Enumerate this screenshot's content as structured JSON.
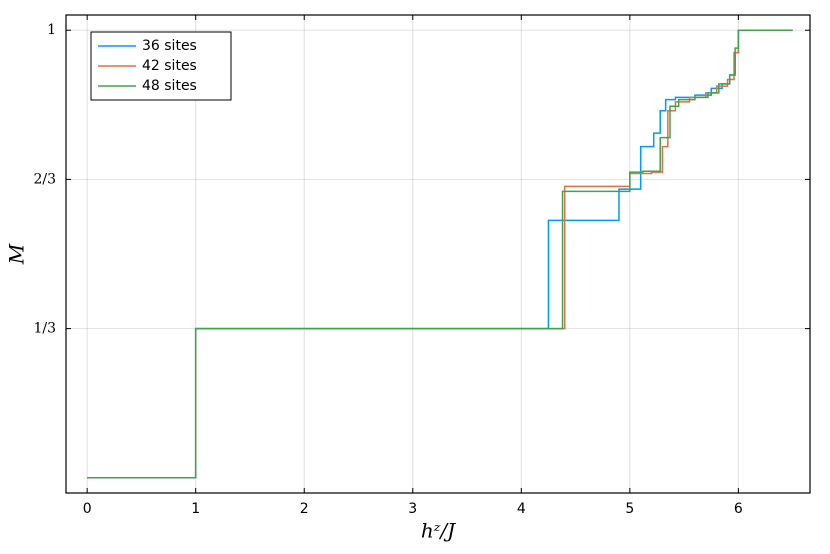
{
  "chart_data": {
    "type": "step",
    "x_label": "hᶻ/J",
    "y_label": "M",
    "xlim": [
      -0.195,
      6.66
    ],
    "ylim": [
      -0.034,
      1.034
    ],
    "xticks": [
      0,
      1,
      2,
      3,
      4,
      5,
      6
    ],
    "yticks": [
      {
        "value": 0.333333,
        "label": "1/3"
      },
      {
        "value": 0.666667,
        "label": "2/3"
      },
      1
    ],
    "grid": true,
    "legend": "top-left",
    "series": [
      {
        "name": "36 sites",
        "color": "#009afa",
        "x": [
          0,
          1,
          4.25,
          4.9,
          5.1,
          5.22,
          5.28,
          5.33,
          5.42,
          5.6,
          5.75,
          5.85,
          5.92,
          5.97,
          6.0,
          6.5
        ],
        "values": [
          0,
          0.3333,
          0.575,
          0.645,
          0.74,
          0.77,
          0.82,
          0.845,
          0.85,
          0.855,
          0.87,
          0.88,
          0.9,
          0.95,
          1,
          1
        ]
      },
      {
        "name": "42 sites",
        "color": "#e26f46",
        "x": [
          0,
          1,
          4.4,
          5.0,
          5.2,
          5.3,
          5.35,
          5.42,
          5.55,
          5.7,
          5.8,
          5.9,
          5.96,
          6.0,
          6.5
        ],
        "values": [
          0,
          0.3333,
          0.651,
          0.68,
          0.683,
          0.74,
          0.82,
          0.84,
          0.85,
          0.86,
          0.875,
          0.89,
          0.95,
          1,
          1
        ]
      },
      {
        "name": "48 sites",
        "color": "#3da44d",
        "x": [
          0,
          1,
          4.38,
          5.0,
          5.12,
          5.28,
          5.37,
          5.45,
          5.6,
          5.72,
          5.82,
          5.92,
          5.97,
          6.0,
          6.5
        ],
        "values": [
          0,
          0.3333,
          0.64,
          0.683,
          0.685,
          0.76,
          0.83,
          0.845,
          0.85,
          0.86,
          0.88,
          0.9,
          0.96,
          1,
          1
        ]
      }
    ]
  }
}
